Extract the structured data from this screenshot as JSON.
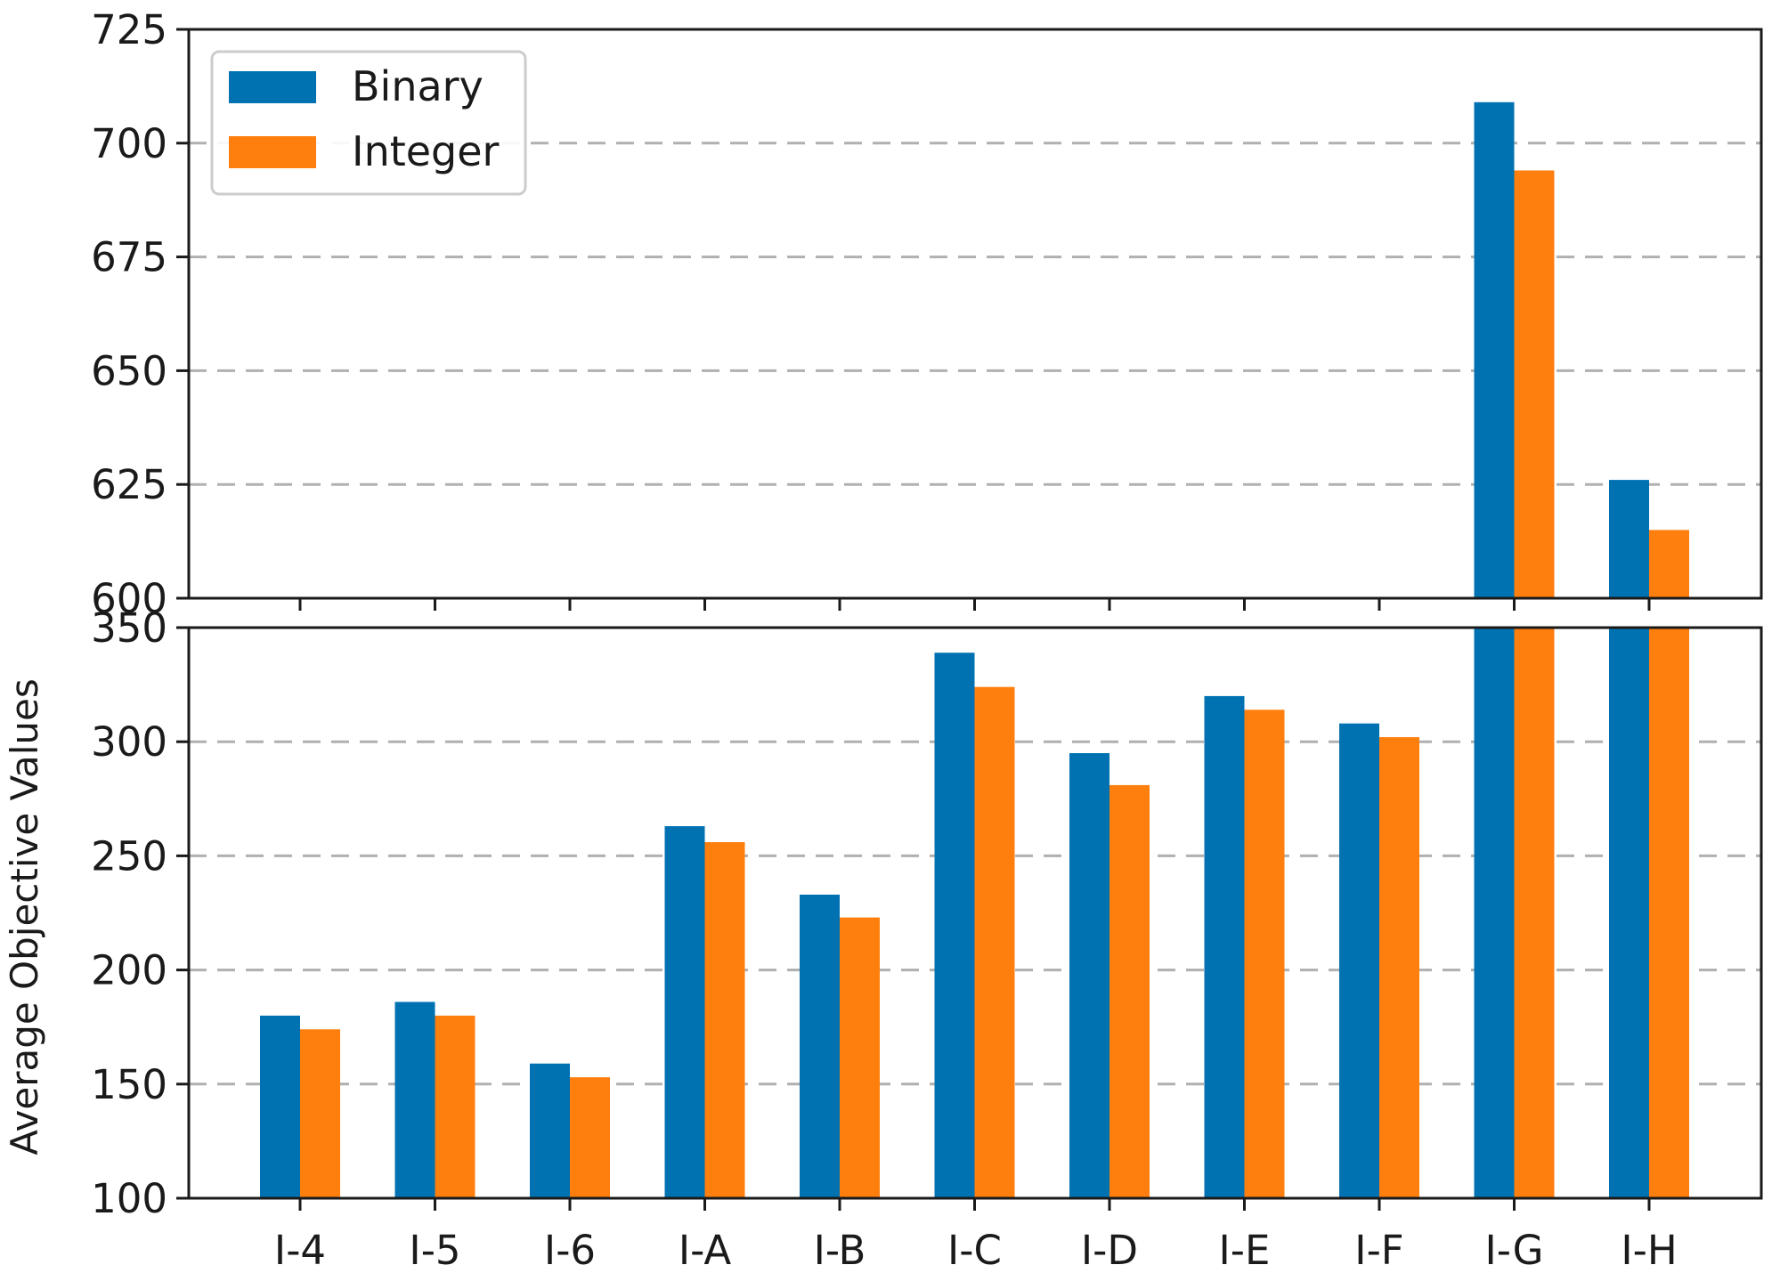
{
  "chart_data": {
    "type": "bar",
    "layout": "broken-y-axis",
    "ylabel": "Average Objective Values",
    "categories": [
      "I-4",
      "I-5",
      "I-6",
      "I-A",
      "I-B",
      "I-C",
      "I-D",
      "I-E",
      "I-F",
      "I-G",
      "I-H"
    ],
    "series": [
      {
        "name": "Binary",
        "color": "#0072b2",
        "values": [
          180,
          186,
          159,
          263,
          233,
          339,
          295,
          320,
          308,
          709,
          626
        ]
      },
      {
        "name": "Integer",
        "color": "#ff7f0e",
        "values": [
          174,
          180,
          153,
          256,
          223,
          324,
          281,
          314,
          302,
          694,
          615
        ]
      }
    ],
    "panels": {
      "top": {
        "ylim": [
          600,
          725
        ],
        "yticks": [
          600,
          625,
          650,
          675,
          700,
          725
        ]
      },
      "bottom": {
        "ylim": [
          100,
          350
        ],
        "yticks": [
          100,
          150,
          200,
          250,
          300,
          350
        ]
      }
    },
    "grid": {
      "axis": "y",
      "style": "dashed",
      "color": "#b0b0b0"
    },
    "legend": {
      "placement": "top-left",
      "entries": [
        "Binary",
        "Integer"
      ]
    }
  }
}
